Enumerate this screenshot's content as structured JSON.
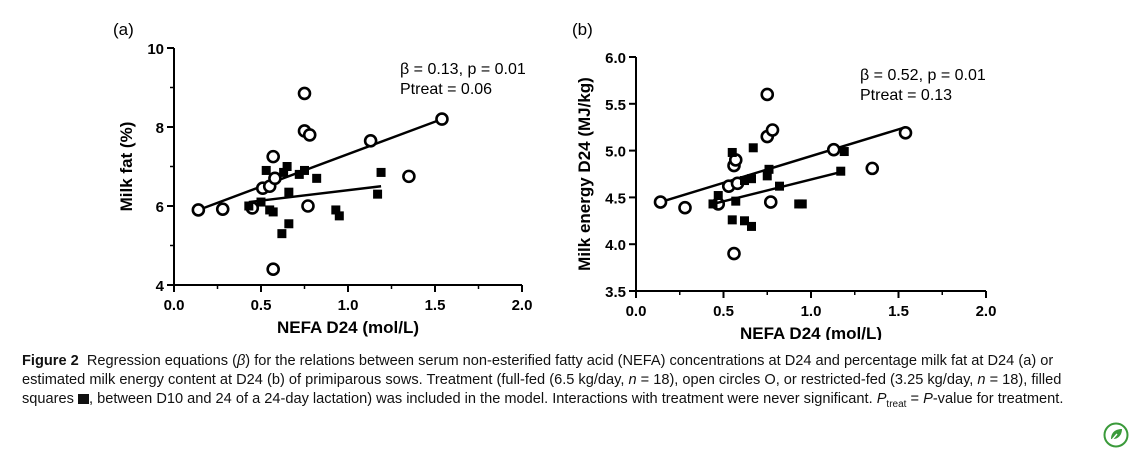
{
  "chart_data": [
    {
      "type": "scatter",
      "panel_label": "(a)",
      "xlabel": "NEFA D24 (mol/L)",
      "ylabel": "Milk fat (%)",
      "xlim": [
        0.0,
        2.0
      ],
      "ylim": [
        4,
        10
      ],
      "xticks": [
        "0.0",
        "0.5",
        "1.0",
        "1.5",
        "2.0"
      ],
      "yticks": [
        "4",
        "6",
        "8",
        "10"
      ],
      "annotation": [
        "β = 0.13, p = 0.01",
        "Ptreat = 0.06"
      ],
      "series": [
        {
          "marker": "open-circle",
          "points": [
            [
              0.14,
              5.9
            ],
            [
              0.28,
              5.92
            ],
            [
              0.45,
              5.95
            ],
            [
              0.51,
              6.45
            ],
            [
              0.55,
              6.5
            ],
            [
              0.57,
              7.25
            ],
            [
              0.58,
              6.7
            ],
            [
              0.57,
              4.4
            ],
            [
              0.75,
              8.85
            ],
            [
              0.75,
              7.9
            ],
            [
              0.78,
              7.8
            ],
            [
              0.77,
              6.0
            ],
            [
              1.13,
              7.65
            ],
            [
              1.35,
              6.75
            ],
            [
              1.54,
              8.2
            ]
          ],
          "fit": [
            [
              0.14,
              5.9
            ],
            [
              1.54,
              8.2
            ]
          ]
        },
        {
          "marker": "filled-square",
          "points": [
            [
              0.43,
              6.0
            ],
            [
              0.5,
              6.1
            ],
            [
              0.53,
              6.9
            ],
            [
              0.55,
              5.9
            ],
            [
              0.57,
              5.85
            ],
            [
              0.63,
              6.85
            ],
            [
              0.65,
              7.0
            ],
            [
              0.66,
              6.35
            ],
            [
              0.62,
              5.3
            ],
            [
              0.66,
              5.55
            ],
            [
              0.72,
              6.8
            ],
            [
              0.75,
              6.9
            ],
            [
              0.82,
              6.7
            ],
            [
              0.93,
              5.9
            ],
            [
              0.95,
              5.75
            ],
            [
              1.17,
              6.3
            ],
            [
              1.19,
              6.85
            ]
          ],
          "fit": [
            [
              0.43,
              6.1
            ],
            [
              1.19,
              6.5
            ]
          ]
        }
      ]
    },
    {
      "type": "scatter",
      "panel_label": "(b)",
      "xlabel": "NEFA D24 (mol/L)",
      "ylabel": "Milk energy D24 (MJ/kg)",
      "xlim": [
        0.0,
        2.0
      ],
      "ylim": [
        3.5,
        6.0
      ],
      "xticks": [
        "0.0",
        "0.5",
        "1.0",
        "1.5",
        "2.0"
      ],
      "yticks": [
        "3.5",
        "4.0",
        "4.5",
        "5.0",
        "5.5",
        "6.0"
      ],
      "annotation": [
        "β = 0.52, p = 0.01",
        "Ptreat = 0.13"
      ],
      "series": [
        {
          "marker": "open-circle",
          "points": [
            [
              0.14,
              4.45
            ],
            [
              0.28,
              4.39
            ],
            [
              0.47,
              4.43
            ],
            [
              0.53,
              4.62
            ],
            [
              0.56,
              4.84
            ],
            [
              0.57,
              4.9
            ],
            [
              0.58,
              4.65
            ],
            [
              0.56,
              3.9
            ],
            [
              0.75,
              5.6
            ],
            [
              0.75,
              5.15
            ],
            [
              0.78,
              5.22
            ],
            [
              0.77,
              4.45
            ],
            [
              1.13,
              5.01
            ],
            [
              1.35,
              4.81
            ],
            [
              1.54,
              5.19
            ]
          ],
          "fit": [
            [
              0.14,
              4.45
            ],
            [
              1.54,
              5.25
            ]
          ]
        },
        {
          "marker": "filled-square",
          "points": [
            [
              0.44,
              4.43
            ],
            [
              0.47,
              4.52
            ],
            [
              0.55,
              4.98
            ],
            [
              0.55,
              4.26
            ],
            [
              0.57,
              4.46
            ],
            [
              0.62,
              4.68
            ],
            [
              0.62,
              4.25
            ],
            [
              0.66,
              4.7
            ],
            [
              0.66,
              4.19
            ],
            [
              0.67,
              5.03
            ],
            [
              0.75,
              4.73
            ],
            [
              0.76,
              4.8
            ],
            [
              0.82,
              4.62
            ],
            [
              0.93,
              4.43
            ],
            [
              0.95,
              4.43
            ],
            [
              1.19,
              4.99
            ],
            [
              1.17,
              4.78
            ]
          ],
          "fit": [
            [
              0.44,
              4.43
            ],
            [
              1.19,
              4.78
            ]
          ]
        }
      ]
    }
  ],
  "caption": {
    "label": "Figure 2",
    "text_1": "Regression equations (",
    "beta": "β",
    "text_2": ") for the relations between serum non-esterified fatty acid (NEFA) concentrations at D24 and percentage milk fat at D24 (a) or estimated milk energy content at D24 (b) of primiparous sows. Treatment (full-fed (6.5 kg/day, ",
    "n1": "n",
    "text_3": " = 18), open circles O, or restricted-fed (3.25 kg/day, ",
    "n2": "n",
    "text_4": " = 18), filled squares ",
    "text_5": ", between D10 and 24 of a 24-day lactation) was included in the model. Interactions with treatment were never significant. ",
    "ptreat_p": "P",
    "ptreat_sub": "treat",
    "text_6": " = ",
    "ptreat_p2": "P",
    "text_7": "-value for treatment."
  },
  "colors": {
    "ink": "#000000",
    "logo": "#3a9a3a"
  },
  "logo_icon": "leaf-badge"
}
